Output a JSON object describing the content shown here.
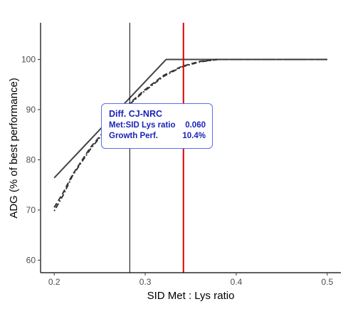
{
  "chart_data": {
    "type": "line",
    "title": "",
    "xlabel": "SID Met : Lys ratio",
    "ylabel": "ADG (% of best performance)",
    "xlim": [
      0.185,
      0.515
    ],
    "ylim": [
      57.5,
      107.3
    ],
    "x_ticks": [
      0.2,
      0.3,
      0.4,
      0.5
    ],
    "y_ticks": [
      60,
      70,
      80,
      90,
      100
    ],
    "x_tick_labels": [
      "0.2",
      "0.3",
      "0.4",
      "0.5"
    ],
    "y_tick_labels": [
      "60",
      "70",
      "80",
      "90",
      "100"
    ],
    "grid": false,
    "series": [
      {
        "style": "solid",
        "color": "#444444",
        "x": [
          0.2,
          0.323,
          0.5
        ],
        "y": [
          76.4,
          100,
          100
        ]
      },
      {
        "style": "dashed",
        "color": "#333333",
        "x": [
          0.2,
          0.21,
          0.22,
          0.24,
          0.26,
          0.28,
          0.3,
          0.32,
          0.34,
          0.36,
          0.38,
          0.4,
          0.45,
          0.5
        ],
        "y": [
          70.5,
          73.5,
          77.0,
          82.5,
          86.8,
          90.8,
          94.0,
          96.8,
          98.6,
          99.6,
          100,
          100,
          100,
          100
        ]
      },
      {
        "style": "dotdash",
        "color": "#333333",
        "x": [
          0.2,
          0.21,
          0.22,
          0.24,
          0.26,
          0.28,
          0.3,
          0.32,
          0.34,
          0.36,
          0.38,
          0.4,
          0.45,
          0.5
        ],
        "y": [
          69.8,
          73.0,
          76.8,
          82.2,
          86.6,
          90.6,
          93.8,
          96.6,
          98.5,
          99.5,
          100,
          100,
          100,
          100
        ]
      }
    ],
    "vlines": [
      {
        "x": 0.283,
        "color": "#000000",
        "width": 1
      },
      {
        "x": 0.342,
        "color": "#e00000",
        "width": 2
      }
    ],
    "annotation": {
      "title": "Diff. CJ-NRC",
      "rows": [
        {
          "label": "Met:SID Lys ratio",
          "value": "0.060"
        },
        {
          "label": "Growth Perf.",
          "value": "10.4%"
        }
      ]
    }
  }
}
